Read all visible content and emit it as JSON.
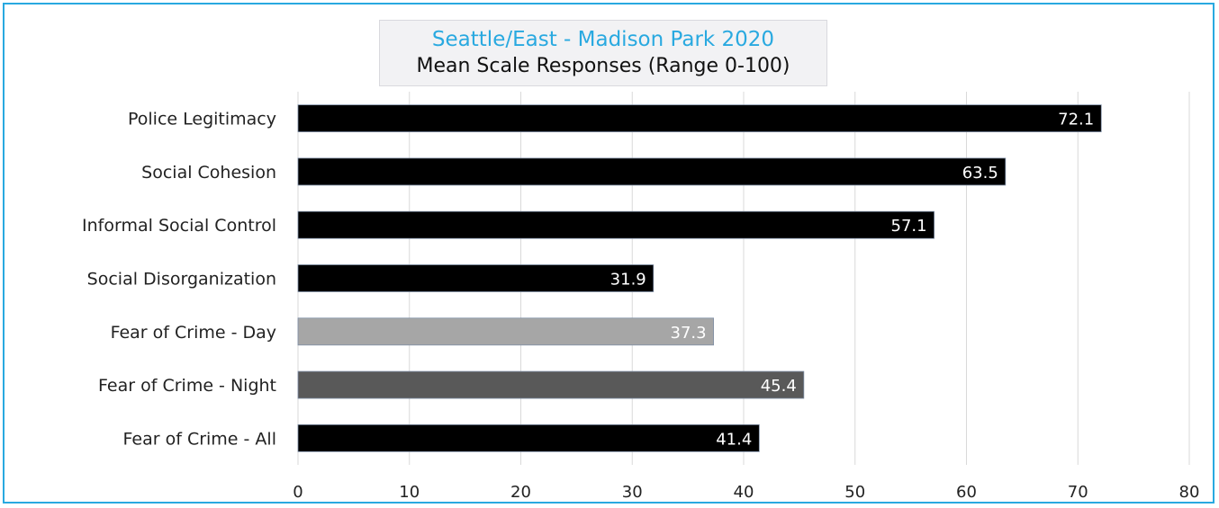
{
  "chart_data": {
    "type": "bar",
    "orientation": "horizontal",
    "title": "Seattle/East - Madison Park 2020",
    "subtitle": "Mean Scale Responses (Range 0-100)",
    "categories": [
      "Police Legitimacy",
      "Social Cohesion",
      "Informal Social Control",
      "Social Disorganization",
      "Fear of Crime - Day",
      "Fear of Crime - Night",
      "Fear of Crime - All"
    ],
    "values": [
      72.1,
      63.5,
      57.1,
      31.9,
      37.3,
      45.4,
      41.4
    ],
    "value_labels": [
      "72.1",
      "63.5",
      "57.1",
      "31.9",
      "37.3",
      "45.4",
      "41.4"
    ],
    "bar_colors": [
      "#000000",
      "#000000",
      "#000000",
      "#000000",
      "#a6a6a6",
      "#595959",
      "#000000"
    ],
    "xlim": [
      0,
      80
    ],
    "xticks": [
      0,
      10,
      20,
      30,
      40,
      50,
      60,
      70,
      80
    ],
    "xlabel": "",
    "ylabel": "",
    "grid": "vertical",
    "legend": "none",
    "colors": {
      "frame": "#29a9e0",
      "title": "#29a9e0",
      "grid": "#d9d9d9"
    }
  }
}
